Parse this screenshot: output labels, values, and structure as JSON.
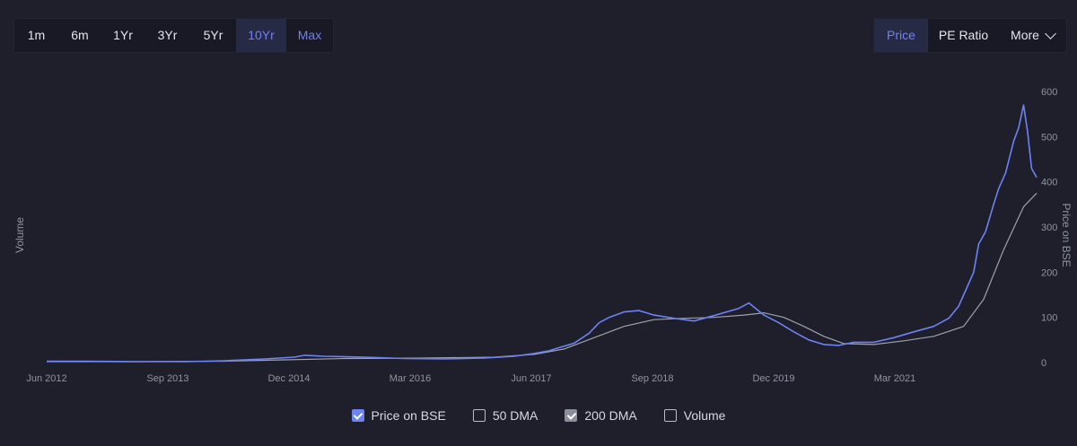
{
  "range_buttons": [
    {
      "label": "1m"
    },
    {
      "label": "6m"
    },
    {
      "label": "1Yr"
    },
    {
      "label": "3Yr"
    },
    {
      "label": "5Yr"
    },
    {
      "label": "10Yr"
    },
    {
      "label": "Max"
    }
  ],
  "metric_buttons": {
    "price": "Price",
    "pe": "PE Ratio",
    "more": "More"
  },
  "legend": {
    "price": "Price on BSE",
    "dma50": "50 DMA",
    "dma200": "200 DMA",
    "volume": "Volume"
  },
  "colors": {
    "price_line": "#6d82f5",
    "dma200_line": "#9ea2ab",
    "background": "#1e1f2b"
  },
  "chart_data": {
    "type": "line",
    "xlabel": "",
    "ylabel_left": "Volume",
    "ylabel_right": "Price on BSE",
    "x_ticks": [
      "Jun 2012",
      "Sep 2013",
      "Dec 2014",
      "Mar 2016",
      "Jun 2017",
      "Sep 2018",
      "Dec 2019",
      "Mar 2021"
    ],
    "y_ticks": [
      0,
      100,
      200,
      300,
      400,
      500,
      600
    ],
    "ylim": [
      0,
      600
    ],
    "xlim": [
      2012.42,
      2022.33
    ],
    "grid": false,
    "legend_position": "bottom-center",
    "series": [
      {
        "name": "Price on BSE",
        "x": [
          2012.42,
          2012.8,
          2013.3,
          2013.8,
          2014.2,
          2014.6,
          2014.9,
          2015.0,
          2015.2,
          2015.6,
          2016.0,
          2016.4,
          2016.8,
          2017.1,
          2017.3,
          2017.45,
          2017.55,
          2017.7,
          2017.85,
          2017.95,
          2018.05,
          2018.2,
          2018.35,
          2018.5,
          2018.7,
          2018.9,
          2019.1,
          2019.35,
          2019.45,
          2019.6,
          2019.75,
          2019.9,
          2020.05,
          2020.2,
          2020.35,
          2020.5,
          2020.7,
          2020.9,
          2021.1,
          2021.3,
          2021.45,
          2021.55,
          2021.62,
          2021.7,
          2021.75,
          2021.82,
          2021.9,
          2021.95,
          2022.02,
          2022.1,
          2022.15,
          2022.2,
          2022.24,
          2022.28,
          2022.33
        ],
        "y": [
          3,
          3,
          2,
          2,
          4,
          8,
          12,
          16,
          14,
          12,
          9,
          8,
          10,
          14,
          20,
          26,
          33,
          43,
          65,
          88,
          100,
          112,
          115,
          105,
          98,
          92,
          104,
          120,
          132,
          105,
          88,
          68,
          50,
          40,
          38,
          45,
          45,
          55,
          68,
          80,
          98,
          125,
          160,
          200,
          262,
          290,
          350,
          385,
          420,
          490,
          520,
          570,
          510,
          430,
          410
        ]
      },
      {
        "name": "200 DMA",
        "x": [
          2012.42,
          2013.3,
          2014.2,
          2014.8,
          2015.4,
          2016.2,
          2016.9,
          2017.3,
          2017.6,
          2017.9,
          2018.2,
          2018.5,
          2018.8,
          2019.1,
          2019.4,
          2019.6,
          2019.8,
          2020.0,
          2020.2,
          2020.4,
          2020.7,
          2021.0,
          2021.3,
          2021.6,
          2021.8,
          2022.0,
          2022.2,
          2022.33
        ],
        "y": [
          2,
          2,
          3,
          6,
          9,
          10,
          12,
          18,
          30,
          55,
          80,
          95,
          98,
          100,
          105,
          110,
          100,
          80,
          58,
          42,
          40,
          48,
          58,
          80,
          140,
          250,
          345,
          375
        ]
      }
    ]
  }
}
